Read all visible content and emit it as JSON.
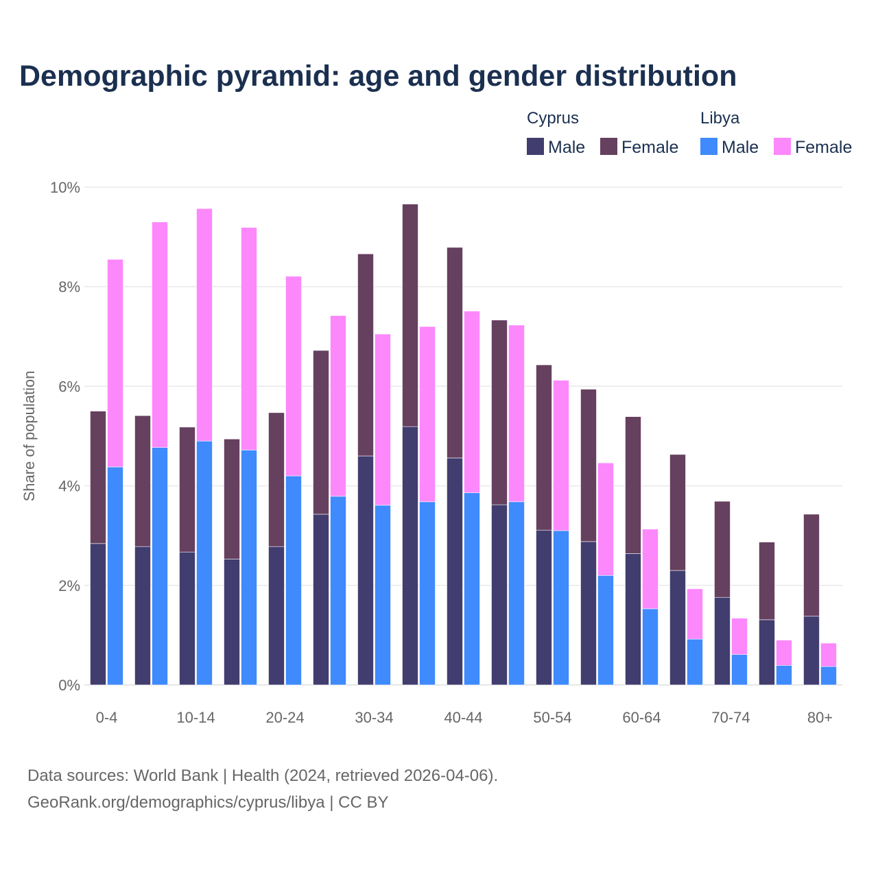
{
  "chart_data": {
    "type": "bar",
    "title": "Demographic pyramid: age and gender distribution",
    "ylabel": "Share of population",
    "xlabel": "",
    "ylim": [
      0,
      10
    ],
    "yticks": [
      "0%",
      "2%",
      "4%",
      "6%",
      "8%",
      "10%"
    ],
    "ytick_values": [
      0,
      2,
      4,
      6,
      8,
      10
    ],
    "grid": true,
    "legend_position": "top-right",
    "categories": [
      "0-4",
      "",
      "10-14",
      "",
      "20-24",
      "",
      "30-34",
      "",
      "40-44",
      "",
      "50-54",
      "",
      "60-64",
      "",
      "70-74",
      "",
      "80+"
    ],
    "groups": [
      {
        "name": "Cyprus",
        "series": [
          {
            "name": "Male",
            "color": "#413d6f",
            "values": [
              2.84,
              2.78,
              2.67,
              2.53,
              2.78,
              3.43,
              4.6,
              5.19,
              4.56,
              3.62,
              3.11,
              2.88,
              2.64,
              2.3,
              1.76,
              1.31,
              1.38
            ]
          },
          {
            "name": "Female",
            "color": "#66405f",
            "values": [
              2.66,
              2.63,
              2.51,
              2.41,
              2.69,
              3.29,
              4.06,
              4.47,
              4.23,
              3.71,
              3.32,
              3.06,
              2.75,
              2.33,
              1.93,
              1.56,
              2.05
            ]
          }
        ]
      },
      {
        "name": "Libya",
        "series": [
          {
            "name": "Male",
            "color": "#3f8afc",
            "values": [
              4.38,
              4.77,
              4.9,
              4.72,
              4.2,
              3.79,
              3.61,
              3.68,
              3.86,
              3.68,
              3.1,
              2.2,
              1.53,
              0.92,
              0.61,
              0.39,
              0.37
            ]
          },
          {
            "name": "Female",
            "color": "#fc88fc",
            "values": [
              4.17,
              4.53,
              4.67,
              4.47,
              4.01,
              3.63,
              3.44,
              3.52,
              3.65,
              3.55,
              3.02,
              2.26,
              1.6,
              1.01,
              0.73,
              0.51,
              0.47
            ]
          }
        ]
      }
    ]
  },
  "footer": {
    "line1": "Data sources: World Bank | Health (2024, retrieved 2026-04-06).",
    "line2": "GeoRank.org/demographics/cyprus/libya | CC BY"
  }
}
